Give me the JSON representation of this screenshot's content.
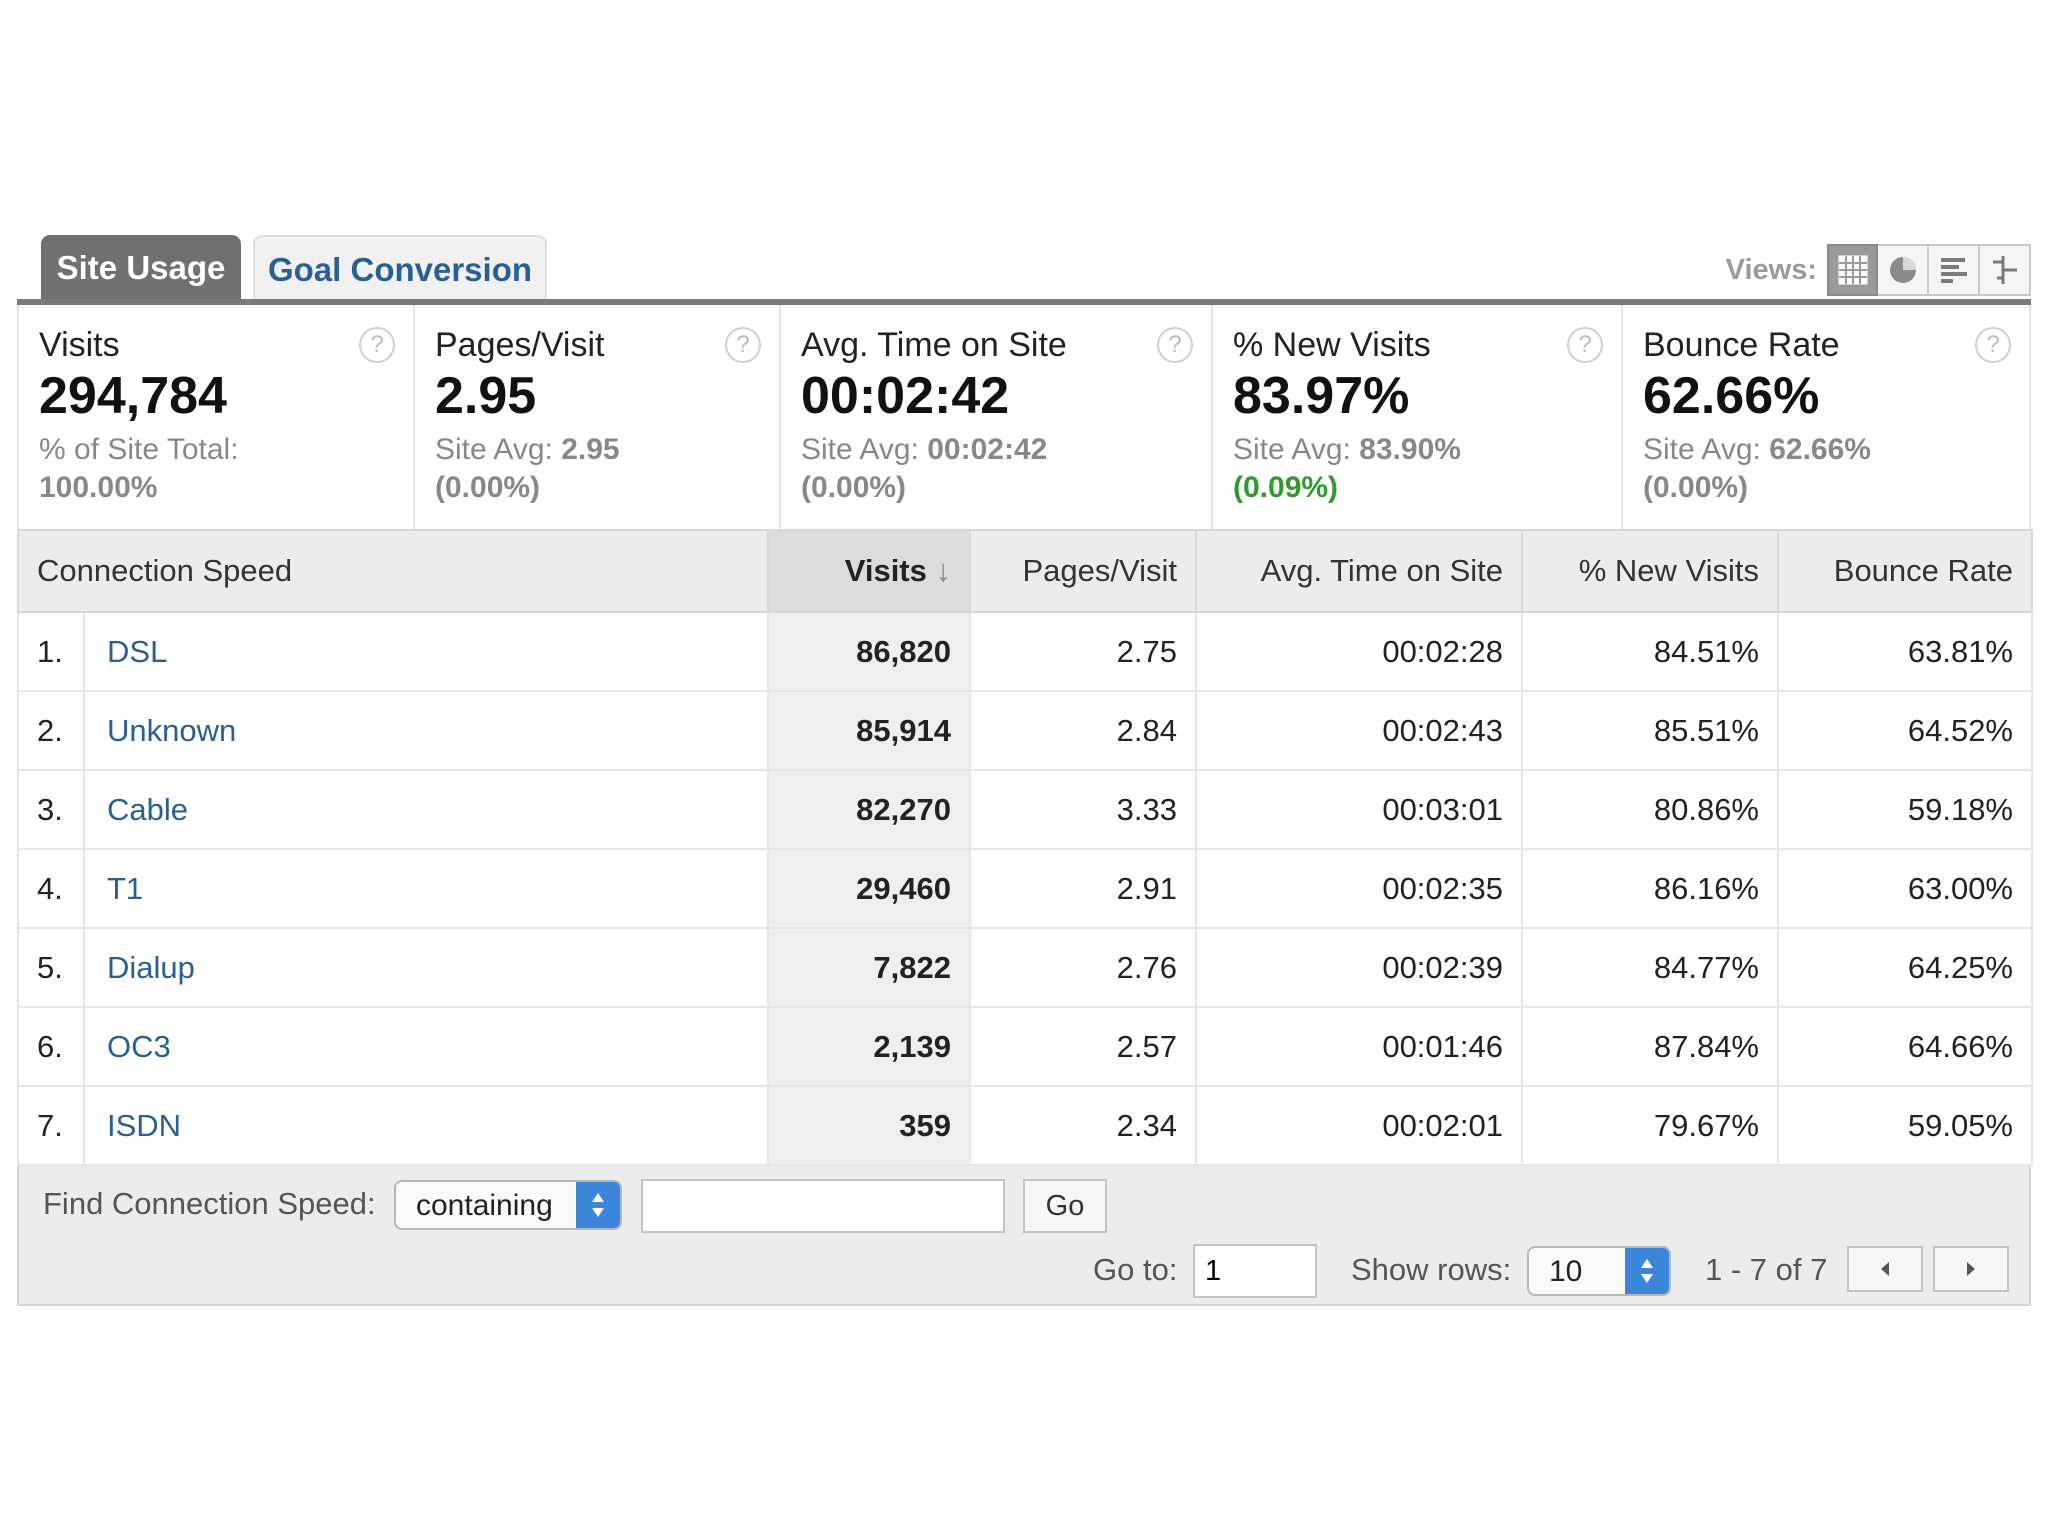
{
  "tabs": [
    {
      "label": "Site Usage",
      "active": true
    },
    {
      "label": "Goal Conversion",
      "active": false
    }
  ],
  "views": {
    "label": "Views:",
    "icons": [
      "table-view-icon",
      "pie-view-icon",
      "bar-view-icon",
      "comparison-view-icon"
    ]
  },
  "scorecards": [
    {
      "title": "Visits",
      "value": "294,784",
      "sub_label": "% of Site Total:",
      "sub_value": "100.00%",
      "sub_pct": ""
    },
    {
      "title": "Pages/Visit",
      "value": "2.95",
      "sub_label": "Site Avg:",
      "sub_value": "2.95",
      "sub_pct": "(0.00%)"
    },
    {
      "title": "Avg. Time on Site",
      "value": "00:02:42",
      "sub_label": "Site Avg:",
      "sub_value": "00:02:42",
      "sub_pct": "(0.00%)"
    },
    {
      "title": "% New Visits",
      "value": "83.97%",
      "sub_label": "Site Avg:",
      "sub_value": "83.90%",
      "sub_pct": "(0.09%)"
    },
    {
      "title": "Bounce Rate",
      "value": "62.66%",
      "sub_label": "Site Avg:",
      "sub_value": "62.66%",
      "sub_pct": "(0.00%)"
    }
  ],
  "help_glyph": "?",
  "table": {
    "columns": [
      "Connection Speed",
      "Visits",
      "Pages/Visit",
      "Avg. Time on Site",
      "% New Visits",
      "Bounce Rate"
    ],
    "sort_arrow": "↓",
    "rows": [
      {
        "num": "1.",
        "name": "DSL",
        "visits": "86,820",
        "pages": "2.75",
        "time": "00:02:28",
        "new": "84.51%",
        "bounce": "63.81%"
      },
      {
        "num": "2.",
        "name": "Unknown",
        "visits": "85,914",
        "pages": "2.84",
        "time": "00:02:43",
        "new": "85.51%",
        "bounce": "64.52%"
      },
      {
        "num": "3.",
        "name": "Cable",
        "visits": "82,270",
        "pages": "3.33",
        "time": "00:03:01",
        "new": "80.86%",
        "bounce": "59.18%"
      },
      {
        "num": "4.",
        "name": "T1",
        "visits": "29,460",
        "pages": "2.91",
        "time": "00:02:35",
        "new": "86.16%",
        "bounce": "63.00%"
      },
      {
        "num": "5.",
        "name": "Dialup",
        "visits": "7,822",
        "pages": "2.76",
        "time": "00:02:39",
        "new": "84.77%",
        "bounce": "64.25%"
      },
      {
        "num": "6.",
        "name": "OC3",
        "visits": "2,139",
        "pages": "2.57",
        "time": "00:01:46",
        "new": "87.84%",
        "bounce": "64.66%"
      },
      {
        "num": "7.",
        "name": "ISDN",
        "visits": "359",
        "pages": "2.34",
        "time": "00:02:01",
        "new": "79.67%",
        "bounce": "59.05%"
      }
    ]
  },
  "footer": {
    "find_label": "Find Connection Speed:",
    "match_select": "containing",
    "find_value": "",
    "go_label": "Go",
    "goto_label": "Go to:",
    "goto_value": "1",
    "show_rows_label": "Show rows:",
    "show_rows_value": "10",
    "pagination": "1 - 7 of 7"
  },
  "colors": {
    "link": "#2a5f94",
    "positive": "#2f9b2f",
    "active_tab": "#707070",
    "select_arrow": "#3b86d9"
  }
}
